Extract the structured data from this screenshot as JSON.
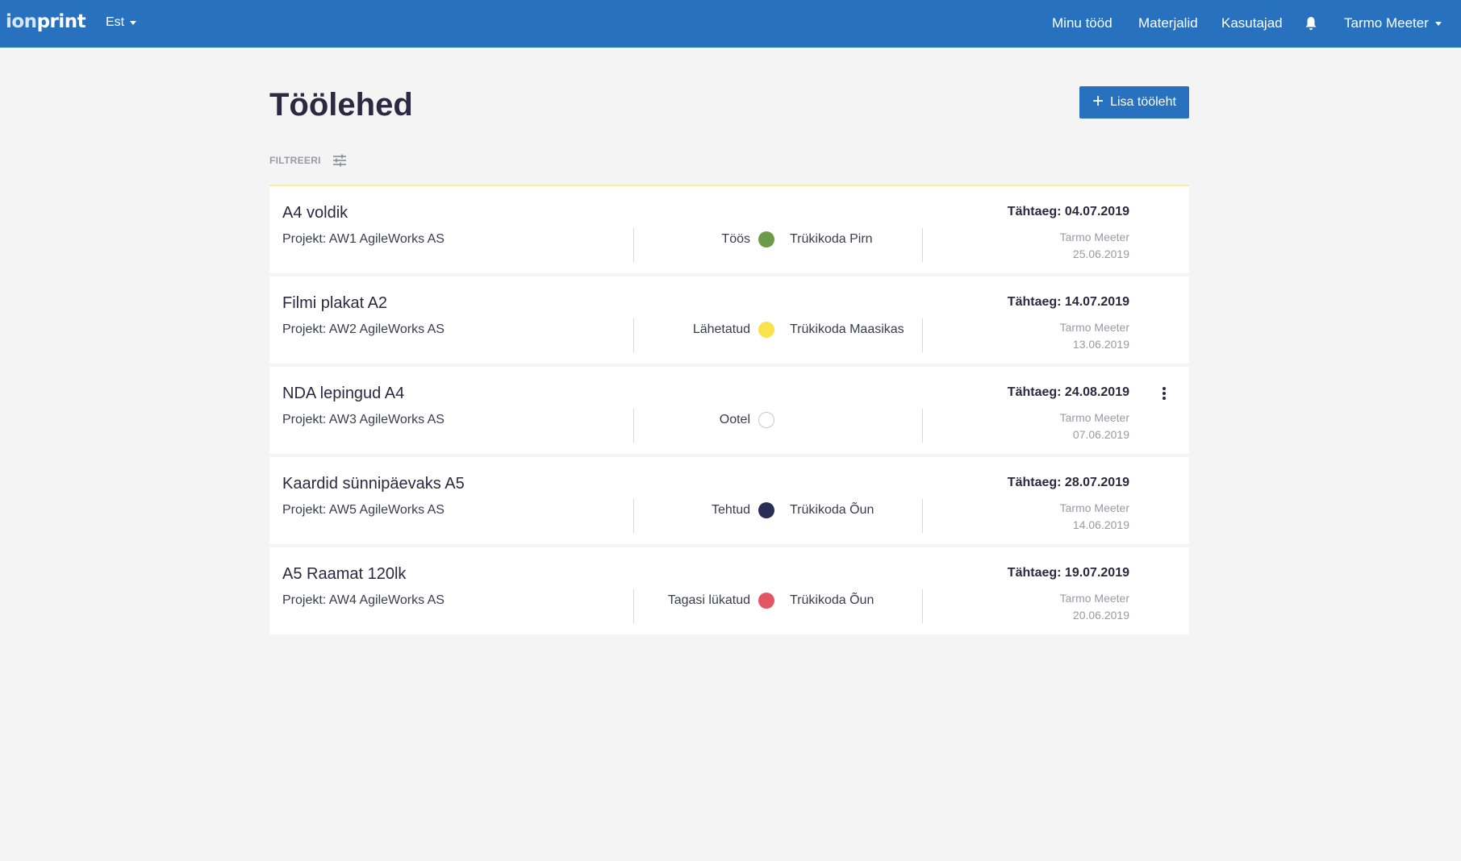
{
  "nav": {
    "logo_ion": "ion",
    "logo_print": "print",
    "language": "Est",
    "links": [
      "Minu tööd",
      "Materjalid",
      "Kasutajad"
    ],
    "user": "Tarmo Meeter"
  },
  "page": {
    "title": "Töölehed",
    "add_button": "Lisa tööleht",
    "filter_label": "FILTREERI"
  },
  "colors": {
    "brand": "#2771be",
    "status_toos": "#6a9a4a",
    "status_lahetatud": "#f9e24c",
    "status_ootel": "#ffffff",
    "status_tehtud": "#2a2d54",
    "status_tagasi": "#e25664"
  },
  "worksheets": [
    {
      "title": "A4 voldik",
      "project": "Projekt: AW1 AgileWorks AS",
      "status": "Töös",
      "status_color": "#6a9a4a",
      "printer": "Trükikoda Pirn",
      "deadline": "Tähtaeg: 04.07.2019",
      "author": "Tarmo Meeter",
      "created": "25.06.2019"
    },
    {
      "title": "Filmi plakat A2",
      "project": "Projekt: AW2 AgileWorks AS",
      "status": "Lähetatud",
      "status_color": "#f9e24c",
      "printer": "Trükikoda Maasikas",
      "deadline": "Tähtaeg: 14.07.2019",
      "author": "Tarmo Meeter",
      "created": "13.06.2019"
    },
    {
      "title": "NDA lepingud A4",
      "project": "Projekt: AW3 AgileWorks AS",
      "status": "Ootel",
      "status_color": "#ffffff",
      "printer": "",
      "deadline": "Tähtaeg: 24.08.2019",
      "author": "Tarmo Meeter",
      "created": "07.06.2019"
    },
    {
      "title": "Kaardid sünnipäevaks A5",
      "project": "Projekt: AW5 AgileWorks AS",
      "status": "Tehtud",
      "status_color": "#2a2d54",
      "printer": "Trükikoda Õun",
      "deadline": "Tähtaeg: 28.07.2019",
      "author": "Tarmo Meeter",
      "created": "14.06.2019"
    },
    {
      "title": "A5 Raamat 120lk",
      "project": "Projekt: AW4 AgileWorks AS",
      "status": "Tagasi lükatud",
      "status_color": "#e25664",
      "printer": "Trükikoda Õun",
      "deadline": "Tähtaeg: 19.07.2019",
      "author": "Tarmo Meeter",
      "created": "20.06.2019"
    }
  ]
}
